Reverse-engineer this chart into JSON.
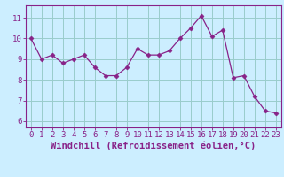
{
  "x": [
    0,
    1,
    2,
    3,
    4,
    5,
    6,
    7,
    8,
    9,
    10,
    11,
    12,
    13,
    14,
    15,
    16,
    17,
    18,
    19,
    20,
    21,
    22,
    23
  ],
  "y": [
    10.0,
    9.0,
    9.2,
    8.8,
    9.0,
    9.2,
    8.6,
    8.2,
    8.2,
    8.6,
    9.5,
    9.2,
    9.2,
    9.4,
    10.0,
    10.5,
    11.1,
    10.1,
    10.4,
    8.1,
    8.2,
    7.2,
    6.5,
    6.4
  ],
  "line_color": "#882288",
  "marker": "D",
  "marker_size": 2.5,
  "bg_color": "#cceeff",
  "grid_color": "#99cccc",
  "xlabel": "Windchill (Refroidissement éolien,°C)",
  "ylabel_ticks": [
    6,
    7,
    8,
    9,
    10,
    11
  ],
  "ylim": [
    5.7,
    11.6
  ],
  "xlim": [
    -0.5,
    23.5
  ],
  "tick_fontsize": 6.5,
  "xlabel_fontsize": 7.5,
  "line_color_hex": "#882288",
  "spine_color": "#882288"
}
